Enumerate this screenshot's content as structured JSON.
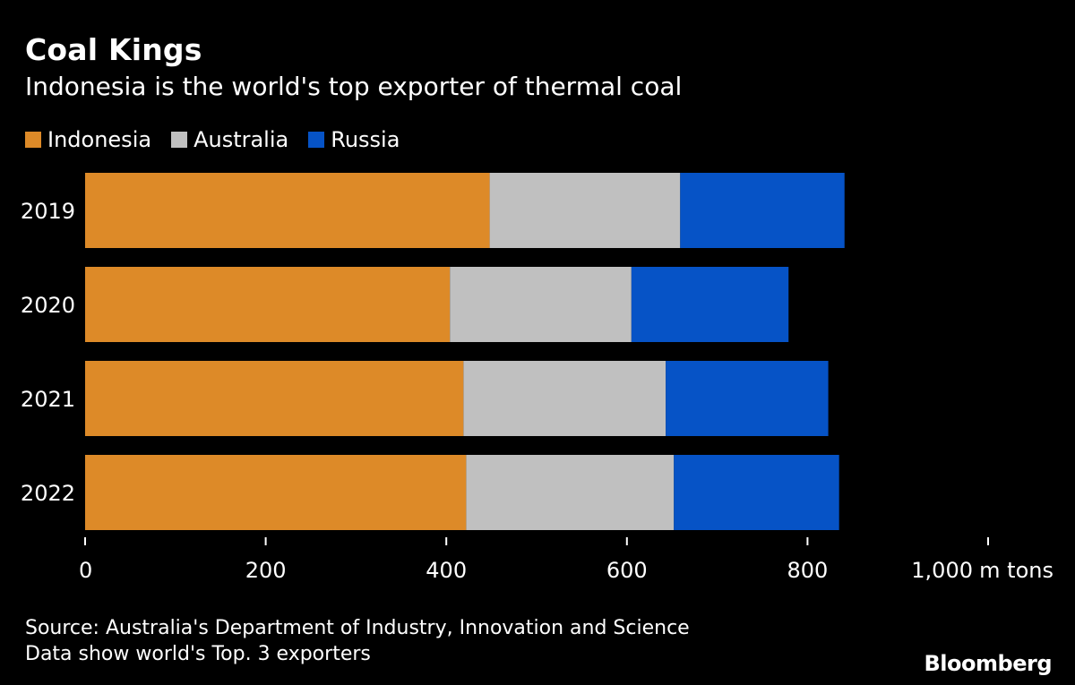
{
  "header": {
    "title": "Coal Kings",
    "subtitle": "Indonesia is the world's top exporter of thermal coal"
  },
  "colors": {
    "background": "#000000",
    "text": "#ffffff",
    "axis": "#ffffff"
  },
  "footer": {
    "source": "Source: Australia's Department of Industry, Innovation and Science",
    "note": "Data show world's Top. 3 exporters",
    "brand": "Bloomberg"
  },
  "chart_data": {
    "type": "bar",
    "orientation": "horizontal",
    "stacked": true,
    "title": "Coal Kings",
    "subtitle": "Indonesia is the world's top exporter of thermal coal",
    "categories": [
      "2019",
      "2020",
      "2021",
      "2022"
    ],
    "series": [
      {
        "name": "Indonesia",
        "color": "#dd8a28",
        "values": [
          448,
          404,
          419,
          422
        ]
      },
      {
        "name": "Australia",
        "color": "#c0c0c0",
        "values": [
          211,
          201,
          224,
          230
        ]
      },
      {
        "name": "Russia",
        "color": "#0653c6",
        "values": [
          182,
          174,
          180,
          183
        ]
      }
    ],
    "xlim": [
      0,
      1000
    ],
    "xticks": [
      0,
      200,
      400,
      600,
      800,
      1000
    ],
    "xtick_labels": [
      "0",
      "200",
      "400",
      "600",
      "800",
      "1,000"
    ],
    "xlabel": "m tons",
    "ylabel": "",
    "legend_position": "top-left",
    "grid": false
  }
}
